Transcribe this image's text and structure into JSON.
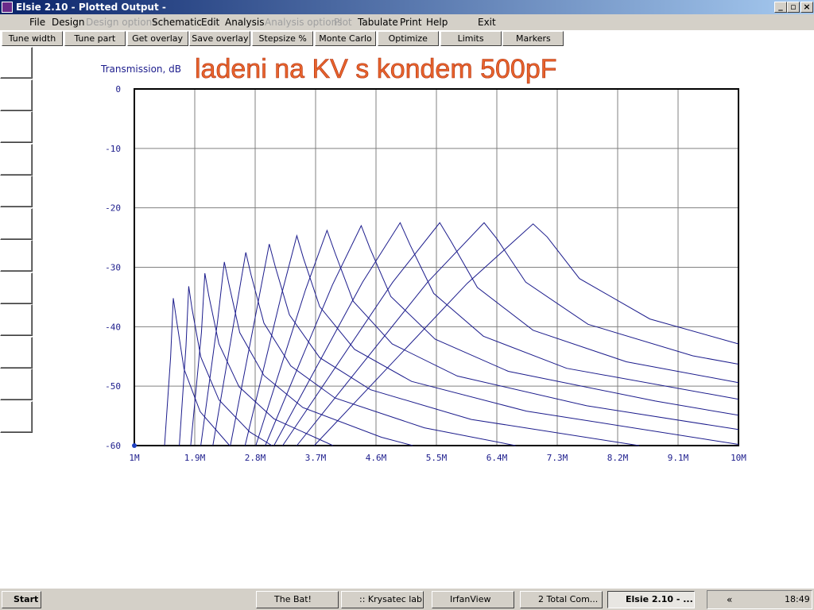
{
  "window": {
    "title": "Elsie 2.10 - Plotted Output -"
  },
  "menu": [
    {
      "label": "File",
      "enabled": true
    },
    {
      "label": "Design",
      "enabled": true
    },
    {
      "label": "Design options",
      "enabled": false
    },
    {
      "label": "Schematic",
      "enabled": true
    },
    {
      "label": "Edit",
      "enabled": true
    },
    {
      "label": "Analysis",
      "enabled": true
    },
    {
      "label": "Analysis options",
      "enabled": false
    },
    {
      "label": "Plot",
      "enabled": false
    },
    {
      "label": "Tabulate",
      "enabled": true
    },
    {
      "label": "Print",
      "enabled": true
    },
    {
      "label": "Help",
      "enabled": true
    },
    {
      "label": "Exit",
      "enabled": true
    }
  ],
  "toolbar": [
    "Tune width",
    "Tune part",
    "Get overlay",
    "Save overlay",
    "Stepsize %",
    "Monte Carlo",
    "Optimize",
    "Limits",
    "Markers"
  ],
  "chart_data": {
    "type": "line",
    "title": "ladeni na KV s kondem 500pF",
    "y_label": "Transmission, dB",
    "grid": true,
    "xlim": [
      1,
      10
    ],
    "xticks": [
      {
        "value": 1,
        "label": "1M"
      },
      {
        "value": 1.9,
        "label": "1.9M"
      },
      {
        "value": 2.8,
        "label": "2.8M"
      },
      {
        "value": 3.7,
        "label": "3.7M"
      },
      {
        "value": 4.6,
        "label": "4.6M"
      },
      {
        "value": 5.5,
        "label": "5.5M"
      },
      {
        "value": 6.4,
        "label": "6.4M"
      },
      {
        "value": 7.3,
        "label": "7.3M"
      },
      {
        "value": 8.2,
        "label": "8.2M"
      },
      {
        "value": 9.1,
        "label": "9.1M"
      },
      {
        "value": 10,
        "label": "10M"
      }
    ],
    "ylim": [
      -60,
      0
    ],
    "yticks": [
      0,
      -10,
      -20,
      -30,
      -40,
      -50,
      -60
    ],
    "series": [
      {
        "color": "#1c1c8c",
        "x": [
          1.45,
          1.54,
          1.58,
          1.63,
          1.74,
          1.98,
          2.42
        ],
        "values": [
          -60,
          -45.2,
          -35.2,
          -39.0,
          -47.1,
          -54.3,
          -60
        ]
      },
      {
        "color": "#1c1c8c",
        "x": [
          1.67,
          1.77,
          1.81,
          1.86,
          1.99,
          2.26,
          2.72,
          3.05
        ],
        "values": [
          -60,
          -43.2,
          -33.2,
          -37.0,
          -45.1,
          -52.3,
          -57.7,
          -60
        ]
      },
      {
        "color": "#1c1c8c",
        "x": [
          1.84,
          2.0,
          2.05,
          2.11,
          2.26,
          2.56,
          3.08,
          3.96
        ],
        "values": [
          -60,
          -41.0,
          -31.0,
          -34.8,
          -42.9,
          -50.1,
          -55.5,
          -60
        ]
      },
      {
        "color": "#1c1c8c",
        "x": [
          1.99,
          2.24,
          2.34,
          2.41,
          2.57,
          2.93,
          3.51,
          4.68,
          5.15
        ],
        "values": [
          -60,
          -39.1,
          -29.1,
          -32.9,
          -41.0,
          -48.2,
          -53.6,
          -58.6,
          -60
        ]
      },
      {
        "color": "#1c1c8c",
        "x": [
          2.17,
          2.51,
          2.66,
          2.74,
          2.93,
          3.33,
          3.99,
          5.32,
          6.68
        ],
        "values": [
          -60,
          -37.5,
          -27.5,
          -31.3,
          -39.4,
          -46.6,
          -52.0,
          -57.0,
          -60
        ]
      },
      {
        "color": "#1c1c8c",
        "x": [
          2.43,
          2.84,
          3.01,
          3.1,
          3.31,
          3.76,
          4.52,
          6.02,
          8.52
        ],
        "values": [
          -60,
          -36.1,
          -26.1,
          -29.9,
          -38.0,
          -45.2,
          -50.6,
          -55.6,
          -60
        ]
      },
      {
        "color": "#1c1c8c",
        "x": [
          2.65,
          3.19,
          3.42,
          3.52,
          3.76,
          4.28,
          5.13,
          6.84,
          10
        ],
        "values": [
          -60,
          -34.7,
          -24.7,
          -28.5,
          -36.6,
          -43.8,
          -49.2,
          -54.2,
          -59.8
        ]
      },
      {
        "color": "#1c1c8c",
        "x": [
          2.81,
          3.55,
          3.87,
          3.99,
          4.26,
          4.84,
          5.81,
          7.74,
          10
        ],
        "values": [
          -60,
          -33.8,
          -23.8,
          -27.6,
          -35.7,
          -42.9,
          -48.3,
          -53.3,
          -57.3
        ]
      },
      {
        "color": "#1c1c8c",
        "x": [
          2.95,
          3.95,
          4.38,
          4.51,
          4.82,
          5.48,
          6.57,
          8.76,
          10
        ],
        "values": [
          -60,
          -33.0,
          -23.0,
          -26.8,
          -34.9,
          -42.1,
          -47.5,
          -52.5,
          -54.9
        ]
      },
      {
        "color": "#1c1c8c",
        "x": [
          3.08,
          4.4,
          4.96,
          5.11,
          5.46,
          6.2,
          7.44,
          10
        ],
        "values": [
          -60,
          -32.5,
          -22.5,
          -26.3,
          -34.4,
          -41.6,
          -47.0,
          -52.2
        ]
      },
      {
        "color": "#1c1c8c",
        "x": [
          3.21,
          4.85,
          5.55,
          5.72,
          6.11,
          6.94,
          8.33,
          10
        ],
        "values": [
          -60,
          -32.5,
          -22.5,
          -25.7,
          -33.4,
          -40.6,
          -45.9,
          -49.4
        ]
      },
      {
        "color": "#1c1c8c",
        "x": [
          3.42,
          5.37,
          6.21,
          6.4,
          6.83,
          7.76,
          9.32,
          10
        ],
        "values": [
          -60,
          -32.5,
          -22.5,
          -25.2,
          -32.5,
          -39.6,
          -44.9,
          -46.3
        ]
      },
      {
        "color": "#1c1c8c",
        "x": [
          3.68,
          5.96,
          6.94,
          7.15,
          7.63,
          8.68,
          10
        ],
        "values": [
          -60,
          -32.7,
          -22.7,
          -24.9,
          -31.9,
          -38.7,
          -42.9
        ]
      }
    ]
  },
  "taskbar": {
    "start": "Start",
    "tasks": [
      "The Bat!",
      ":: Krysatec lab...",
      "IrfanView",
      "2 Total Com...",
      "Elsie 2.10 - ..."
    ],
    "tray_arrow": "«",
    "clock": "18:49"
  }
}
